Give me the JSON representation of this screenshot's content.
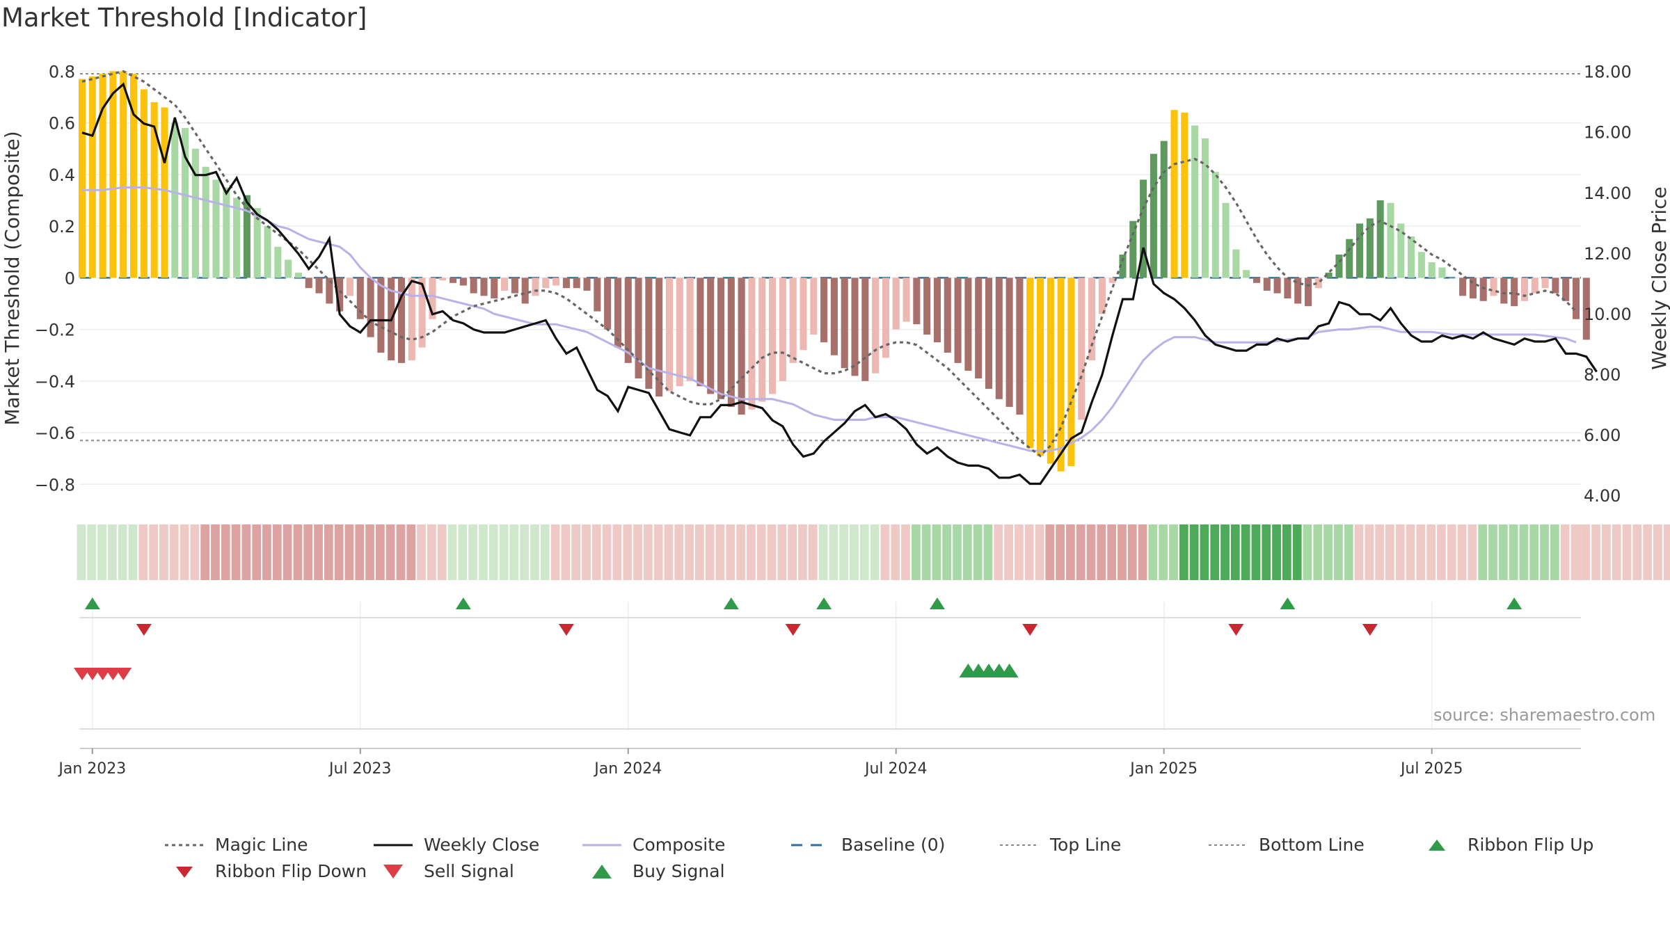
{
  "title": "Market Threshold [Indicator]",
  "source": "source: sharemaestro.com",
  "colors": {
    "gold": "#FDC20C",
    "green_light": "#A8D8A3",
    "green_dark": "#5E9A5E",
    "red_light": "#EDB7B2",
    "red_dark": "#A8706B",
    "close_line": "#111111",
    "composite_line": "#B9B1E8",
    "magic_line": "#666666",
    "baseline": "#2E6FA3",
    "buy": "#2F9A49",
    "sell": "#D0303A"
  },
  "legend": [
    {
      "key": "magic",
      "label": "Magic Line"
    },
    {
      "key": "close",
      "label": "Weekly Close"
    },
    {
      "key": "composite",
      "label": "Composite"
    },
    {
      "key": "baseline",
      "label": "Baseline (0)"
    },
    {
      "key": "top",
      "label": "Top Line"
    },
    {
      "key": "bottom",
      "label": "Bottom Line"
    },
    {
      "key": "flipup",
      "label": "Ribbon Flip Up"
    },
    {
      "key": "flipdown",
      "label": "Ribbon Flip Down"
    },
    {
      "key": "sell",
      "label": "Sell Signal"
    },
    {
      "key": "buy",
      "label": "Buy Signal"
    }
  ],
  "chart_data": {
    "type": "bar",
    "ylabel": "Market Threshold (Composite)",
    "y2label": "Weekly Close Price",
    "ylim": [
      -0.88,
      0.82
    ],
    "y2lim": [
      3.7,
      18.2
    ],
    "yticks": [
      0.8,
      0.6,
      0.4,
      0.2,
      0,
      -0.2,
      -0.4,
      -0.6,
      -0.8
    ],
    "ytick_labels": [
      "0.8",
      "0.6",
      "0.4",
      "0.2",
      "0",
      "−0.2",
      "−0.4",
      "−0.6",
      "−0.8"
    ],
    "y2ticks": [
      18,
      16,
      14,
      12,
      10,
      8,
      6,
      4
    ],
    "y2tick_labels": [
      "18.00",
      "16.00",
      "14.00",
      "12.00",
      "10.00",
      "8.00",
      "6.00",
      "4.00"
    ],
    "xticks": [
      "Jan 2023",
      "Jul 2023",
      "Jan 2024",
      "Jul 2024",
      "Jan 2025",
      "Jul 2025"
    ],
    "xtick_weeks": [
      1,
      27,
      53,
      79,
      105,
      131
    ],
    "weeks": 146,
    "top_line": 0.79,
    "bottom_line": -0.63,
    "legend_position": "bottom",
    "grid": true,
    "histogram": [
      0.77,
      0.78,
      0.79,
      0.8,
      0.8,
      0.79,
      0.73,
      0.68,
      0.66,
      0.6,
      0.58,
      0.5,
      0.43,
      0.38,
      0.35,
      0.31,
      0.32,
      0.27,
      0.2,
      0.12,
      0.07,
      0.02,
      -0.04,
      -0.06,
      -0.1,
      -0.13,
      -0.07,
      -0.16,
      -0.23,
      -0.29,
      -0.32,
      -0.33,
      -0.32,
      -0.27,
      -0.16,
      -0.01,
      -0.02,
      -0.03,
      -0.06,
      -0.07,
      -0.08,
      -0.05,
      -0.06,
      -0.1,
      -0.07,
      -0.04,
      -0.03,
      -0.04,
      -0.04,
      -0.05,
      -0.13,
      -0.2,
      -0.27,
      -0.33,
      -0.39,
      -0.43,
      -0.46,
      -0.44,
      -0.42,
      -0.4,
      -0.42,
      -0.45,
      -0.47,
      -0.5,
      -0.53,
      -0.51,
      -0.48,
      -0.45,
      -0.4,
      -0.33,
      -0.28,
      -0.22,
      -0.25,
      -0.3,
      -0.35,
      -0.38,
      -0.4,
      -0.37,
      -0.31,
      -0.2,
      -0.17,
      -0.18,
      -0.22,
      -0.25,
      -0.29,
      -0.33,
      -0.36,
      -0.39,
      -0.43,
      -0.47,
      -0.5,
      -0.53,
      -0.66,
      -0.69,
      -0.72,
      -0.75,
      -0.73,
      -0.55,
      -0.32,
      -0.14,
      -0.02,
      0.09,
      0.22,
      0.38,
      0.48,
      0.53,
      0.65,
      0.64,
      0.59,
      0.54,
      0.41,
      0.29,
      0.11,
      0.03,
      -0.02,
      -0.05,
      -0.06,
      -0.08,
      -0.1,
      -0.11,
      -0.04,
      0.02,
      0.09,
      0.15,
      0.21,
      0.23,
      0.3,
      0.29,
      0.21,
      0.16,
      0.1,
      0.06,
      0.04,
      0.0,
      -0.07,
      -0.08,
      -0.09,
      -0.07,
      -0.1,
      -0.11,
      -0.09,
      -0.06,
      -0.04,
      -0.06,
      -0.09,
      -0.16,
      -0.24
    ],
    "weekly_close": [
      16.0,
      15.9,
      16.8,
      17.3,
      17.6,
      16.6,
      16.3,
      16.2,
      15.0,
      16.5,
      15.2,
      14.6,
      14.6,
      14.7,
      14.0,
      14.5,
      13.7,
      13.3,
      13.1,
      12.8,
      12.4,
      12.0,
      11.5,
      11.9,
      12.5,
      10.0,
      9.6,
      9.4,
      9.8,
      9.8,
      9.8,
      10.6,
      11.1,
      11.0,
      10.0,
      10.1,
      9.8,
      9.7,
      9.5,
      9.4,
      9.4,
      9.4,
      9.5,
      9.6,
      9.7,
      9.8,
      9.2,
      8.7,
      8.9,
      8.2,
      7.5,
      7.3,
      6.8,
      7.6,
      7.5,
      7.4,
      6.8,
      6.2,
      6.1,
      6.0,
      6.6,
      6.6,
      7.0,
      7.0,
      7.1,
      7.0,
      6.9,
      6.5,
      6.3,
      5.7,
      5.3,
      5.4,
      5.8,
      6.1,
      6.4,
      6.8,
      7.0,
      6.6,
      6.7,
      6.5,
      6.2,
      5.7,
      5.4,
      5.6,
      5.3,
      5.1,
      5.0,
      5.0,
      4.9,
      4.6,
      4.6,
      4.7,
      4.4,
      4.4,
      4.9,
      5.4,
      5.9,
      6.1,
      7.1,
      8.0,
      9.3,
      10.5,
      10.5,
      12.2,
      11.0,
      10.7,
      10.5,
      10.2,
      9.8,
      9.3,
      9.0,
      8.9,
      8.8,
      8.8,
      9.0,
      9.0,
      9.2,
      9.1,
      9.2,
      9.2,
      9.6,
      9.7,
      10.4,
      10.3,
      10.0,
      10.0,
      9.8,
      10.2,
      9.7,
      9.3,
      9.1,
      9.1,
      9.3,
      9.2,
      9.3,
      9.2,
      9.4,
      9.2,
      9.1,
      9.0,
      9.2,
      9.1,
      9.1,
      9.2,
      8.7,
      8.7,
      8.6,
      8.1
    ],
    "composite": [
      0.34,
      0.34,
      0.34,
      0.345,
      0.35,
      0.35,
      0.35,
      0.345,
      0.34,
      0.33,
      0.32,
      0.31,
      0.3,
      0.29,
      0.28,
      0.27,
      0.26,
      0.24,
      0.22,
      0.2,
      0.19,
      0.17,
      0.15,
      0.14,
      0.13,
      0.12,
      0.09,
      0.04,
      0.0,
      -0.03,
      -0.05,
      -0.06,
      -0.07,
      -0.07,
      -0.07,
      -0.08,
      -0.09,
      -0.1,
      -0.11,
      -0.12,
      -0.14,
      -0.15,
      -0.16,
      -0.17,
      -0.18,
      -0.18,
      -0.18,
      -0.19,
      -0.2,
      -0.21,
      -0.23,
      -0.25,
      -0.27,
      -0.29,
      -0.32,
      -0.35,
      -0.36,
      -0.37,
      -0.38,
      -0.39,
      -0.41,
      -0.43,
      -0.45,
      -0.46,
      -0.47,
      -0.47,
      -0.47,
      -0.47,
      -0.48,
      -0.49,
      -0.51,
      -0.53,
      -0.54,
      -0.55,
      -0.55,
      -0.55,
      -0.55,
      -0.54,
      -0.54,
      -0.54,
      -0.55,
      -0.56,
      -0.57,
      -0.58,
      -0.59,
      -0.6,
      -0.61,
      -0.62,
      -0.63,
      -0.64,
      -0.65,
      -0.66,
      -0.67,
      -0.67,
      -0.67,
      -0.66,
      -0.64,
      -0.62,
      -0.59,
      -0.55,
      -0.5,
      -0.44,
      -0.38,
      -0.32,
      -0.28,
      -0.25,
      -0.23,
      -0.23,
      -0.23,
      -0.24,
      -0.25,
      -0.25,
      -0.25,
      -0.25,
      -0.25,
      -0.25,
      -0.245,
      -0.24,
      -0.235,
      -0.23,
      -0.21,
      -0.205,
      -0.2,
      -0.2,
      -0.195,
      -0.19,
      -0.19,
      -0.2,
      -0.21,
      -0.21,
      -0.21,
      -0.21,
      -0.215,
      -0.22,
      -0.22,
      -0.22,
      -0.22,
      -0.22,
      -0.22,
      -0.22,
      -0.22,
      -0.22,
      -0.225,
      -0.23,
      -0.235,
      -0.25
    ],
    "magic_line": [
      0.76,
      0.77,
      0.78,
      0.79,
      0.8,
      0.78,
      0.76,
      0.73,
      0.7,
      0.67,
      0.62,
      0.56,
      0.5,
      0.44,
      0.38,
      0.32,
      0.27,
      0.23,
      0.2,
      0.17,
      0.14,
      0.11,
      0.07,
      0.03,
      -0.01,
      -0.05,
      -0.09,
      -0.13,
      -0.17,
      -0.19,
      -0.21,
      -0.23,
      -0.24,
      -0.23,
      -0.21,
      -0.18,
      -0.15,
      -0.13,
      -0.11,
      -0.1,
      -0.09,
      -0.08,
      -0.07,
      -0.06,
      -0.05,
      -0.05,
      -0.06,
      -0.08,
      -0.11,
      -0.14,
      -0.17,
      -0.2,
      -0.24,
      -0.28,
      -0.32,
      -0.36,
      -0.4,
      -0.44,
      -0.46,
      -0.48,
      -0.49,
      -0.49,
      -0.47,
      -0.43,
      -0.39,
      -0.35,
      -0.31,
      -0.29,
      -0.29,
      -0.31,
      -0.33,
      -0.35,
      -0.37,
      -0.37,
      -0.36,
      -0.34,
      -0.31,
      -0.28,
      -0.26,
      -0.25,
      -0.25,
      -0.26,
      -0.29,
      -0.32,
      -0.35,
      -0.39,
      -0.43,
      -0.47,
      -0.51,
      -0.55,
      -0.59,
      -0.63,
      -0.66,
      -0.69,
      -0.65,
      -0.58,
      -0.48,
      -0.38,
      -0.26,
      -0.15,
      -0.04,
      0.07,
      0.17,
      0.27,
      0.35,
      0.41,
      0.44,
      0.45,
      0.46,
      0.44,
      0.4,
      0.35,
      0.29,
      0.22,
      0.15,
      0.09,
      0.04,
      0.0,
      -0.02,
      -0.03,
      -0.02,
      0.02,
      0.06,
      0.11,
      0.16,
      0.2,
      0.22,
      0.2,
      0.18,
      0.15,
      0.12,
      0.09,
      0.07,
      0.04,
      0.01,
      -0.02,
      -0.04,
      -0.05,
      -0.06,
      -0.06,
      -0.07,
      -0.06,
      -0.05,
      -0.06,
      -0.09,
      -0.13
    ],
    "ribbon": [
      1,
      1,
      1,
      1,
      1,
      1,
      -1,
      -1,
      -1,
      -1,
      -1,
      -1,
      -2,
      -2,
      -2,
      -2,
      -2,
      -2,
      -2,
      -2,
      -2,
      -2,
      -2,
      -2,
      -2,
      -2,
      -2,
      -2,
      -2,
      -2,
      -2,
      -2,
      -2,
      -1,
      -1,
      -1,
      1,
      1,
      1,
      1,
      1,
      1,
      1,
      1,
      1,
      1,
      -1,
      -1,
      -1,
      -1,
      -1,
      -1,
      -1,
      -1,
      -1,
      -1,
      -1,
      -1,
      -1,
      -1,
      -1,
      -1,
      -1,
      -1,
      -1,
      -1,
      -1,
      -1,
      -1,
      -1,
      -1,
      -1,
      1,
      1,
      1,
      1,
      1,
      1,
      -1,
      -1,
      -1,
      2,
      2,
      2,
      2,
      2,
      2,
      2,
      2,
      -1,
      -1,
      -1,
      -1,
      -1,
      -2,
      -2,
      -2,
      -2,
      -2,
      -2,
      -2,
      -2,
      -2,
      -2,
      2,
      2,
      2,
      3,
      3,
      3,
      3,
      3,
      3,
      3,
      3,
      3,
      3,
      3,
      3,
      2,
      2,
      2,
      2,
      2,
      -1,
      -1,
      -1,
      -1,
      -1,
      -1,
      -1,
      -1,
      -1,
      -1,
      -1,
      -1,
      2,
      2,
      2,
      2,
      2,
      2,
      2,
      2,
      -1,
      -1,
      -1,
      -1,
      -1,
      -1,
      -1,
      -1,
      -1,
      -1,
      -1,
      -1,
      -1,
      -1,
      -1,
      -1,
      -1,
      -1
    ],
    "ribbon_flip_up_weeks": [
      1,
      37,
      63,
      72,
      83,
      117,
      139
    ],
    "ribbon_flip_down_weeks": [
      6,
      47,
      69,
      92,
      112,
      125
    ],
    "sell_signal_weeks": [
      0,
      1,
      2,
      3,
      4
    ],
    "buy_signal_weeks": [
      86,
      87,
      88,
      89,
      90
    ]
  }
}
